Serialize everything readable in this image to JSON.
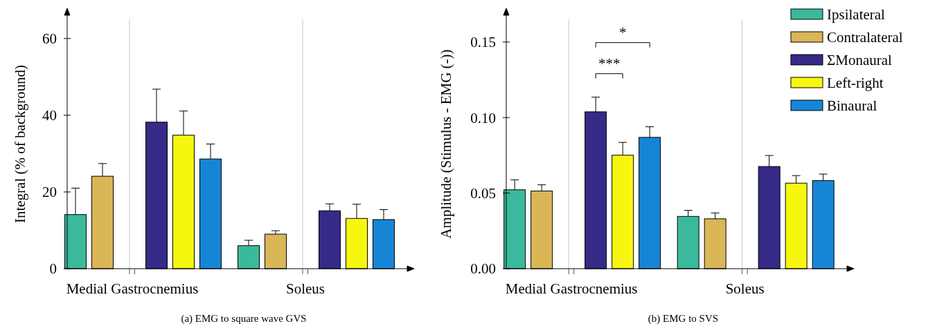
{
  "chart_data": [
    {
      "type": "bar",
      "title": "(a) EMG to square wave GVS",
      "ylabel": "Integral (% of background)",
      "categories": [
        "Medial Gastrocnemius",
        "Soleus"
      ],
      "ylim": [
        0,
        65
      ],
      "yticks": [
        0,
        20,
        40,
        60
      ],
      "ref_lines": [
        {
          "axis": "x",
          "value": "Medial Gastrocnemius",
          "color": "#c8c8c8"
        },
        {
          "axis": "x",
          "value": "Soleus",
          "color": "#c8c8c8"
        }
      ],
      "series": [
        {
          "color": "#3bb99c",
          "values": [
            14.1,
            6.0
          ],
          "errors": [
            [
              14.1,
              21.0
            ],
            [
              6.0,
              7.4
            ]
          ]
        },
        {
          "color": "#d9b656",
          "values": [
            24.1,
            9.0
          ],
          "errors": [
            [
              24.1,
              27.4
            ],
            [
              9.0,
              9.9
            ]
          ]
        },
        {
          "color": "#352a87",
          "values": [
            38.2,
            15.1
          ],
          "errors": [
            [
              38.2,
              46.8
            ],
            [
              15.1,
              16.9
            ]
          ]
        },
        {
          "color": "#f6f60f",
          "values": [
            34.8,
            13.1
          ],
          "errors": [
            [
              34.8,
              41.1
            ],
            [
              13.1,
              16.8
            ]
          ]
        },
        {
          "color": "#1685d5",
          "values": [
            28.6,
            12.8
          ],
          "errors": [
            [
              28.6,
              32.5
            ],
            [
              12.8,
              15.4
            ]
          ]
        }
      ]
    },
    {
      "type": "bar",
      "title": "(b) EMG to SVS",
      "ylabel": "Amplitude (Stimulus - EMG (-))",
      "categories": [
        "Medial Gastrocnemius",
        "Soleus"
      ],
      "ylim": [
        0,
        0.165
      ],
      "yticks": [
        {
          "value": 0,
          "label": "0.00"
        },
        {
          "value": 0.05,
          "label": "0.05"
        },
        {
          "value": 0.1,
          "label": "0.10"
        },
        {
          "value": 0.15,
          "label": "0.15"
        }
      ],
      "legend": "top right",
      "ref_lines": [
        {
          "axis": "x",
          "value": "Medial Gastrocnemius",
          "color": "#c8c8c8"
        },
        {
          "axis": "x",
          "value": "Soleus",
          "color": "#c8c8c8"
        }
      ],
      "annotations": [
        "***",
        "*"
      ],
      "series": [
        {
          "name": "Ipsilateral",
          "color": "#3bb99c",
          "values": [
            0.0522,
            0.0346
          ],
          "errors": [
            [
              0.0522,
              0.0588
            ],
            [
              0.0346,
              0.0386
            ]
          ]
        },
        {
          "name": "Contralateral",
          "color": "#d9b656",
          "values": [
            0.0514,
            0.033
          ],
          "errors": [
            [
              0.0514,
              0.0555
            ],
            [
              0.033,
              0.0369
            ]
          ]
        },
        {
          "name": "ΣMonaural",
          "color": "#352a87",
          "values": [
            0.1038,
            0.0676
          ],
          "errors": [
            [
              0.1038,
              0.1135
            ],
            [
              0.0676,
              0.0749
            ]
          ]
        },
        {
          "name": "Left-right",
          "color": "#f6f60f",
          "values": [
            0.0751,
            0.0566
          ],
          "errors": [
            [
              0.0751,
              0.0836
            ],
            [
              0.0566,
              0.0616
            ]
          ]
        },
        {
          "name": "Binaural",
          "color": "#1685d5",
          "values": [
            0.0869,
            0.0583
          ],
          "errors": [
            [
              0.0869,
              0.0939
            ],
            [
              0.0583,
              0.0626
            ]
          ]
        }
      ]
    }
  ]
}
